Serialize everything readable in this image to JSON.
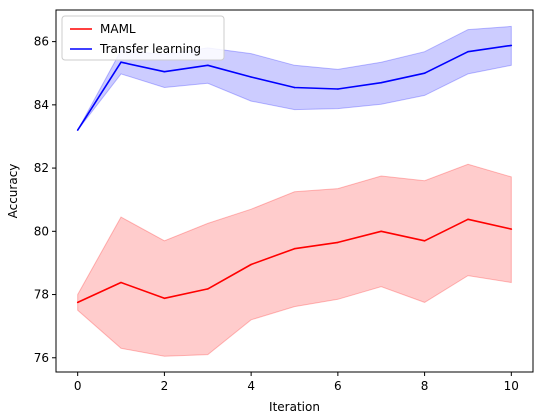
{
  "chart_data": {
    "type": "line",
    "title": "",
    "xlabel": "Iteration",
    "ylabel": "Accuracy",
    "xlim": [
      -0.5,
      10.5
    ],
    "ylim": [
      75.55,
      87.0
    ],
    "xticks": [
      0,
      2,
      4,
      6,
      8,
      10
    ],
    "yticks": [
      76,
      78,
      80,
      82,
      84,
      86
    ],
    "x": [
      0,
      1,
      2,
      3,
      4,
      5,
      6,
      7,
      8,
      9,
      10
    ],
    "grid": false,
    "legend_position": "top-left",
    "series": [
      {
        "name": "MAML",
        "color": "#ff0000",
        "fill_color": "#ff0000",
        "values": [
          77.75,
          78.38,
          77.88,
          78.18,
          78.95,
          79.45,
          79.65,
          80.0,
          79.7,
          80.38,
          80.07
        ],
        "lower": [
          77.5,
          76.3,
          76.05,
          76.1,
          77.2,
          77.62,
          77.85,
          78.25,
          77.75,
          78.6,
          78.38
        ],
        "upper": [
          78.0,
          80.45,
          79.7,
          80.25,
          80.7,
          81.25,
          81.35,
          81.75,
          81.6,
          82.12,
          81.72
        ]
      },
      {
        "name": "Transfer learning",
        "color": "#0000ff",
        "fill_color": "#0000ff",
        "values": [
          83.2,
          85.35,
          85.05,
          85.25,
          84.88,
          84.55,
          84.5,
          84.7,
          85.0,
          85.68,
          85.88
        ],
        "lower": [
          83.2,
          84.98,
          84.55,
          84.68,
          84.12,
          83.85,
          83.88,
          84.02,
          84.3,
          84.98,
          85.25
        ],
        "upper": [
          83.2,
          85.72,
          85.6,
          85.8,
          85.62,
          85.25,
          85.12,
          85.35,
          85.68,
          86.38,
          86.48
        ]
      }
    ]
  }
}
